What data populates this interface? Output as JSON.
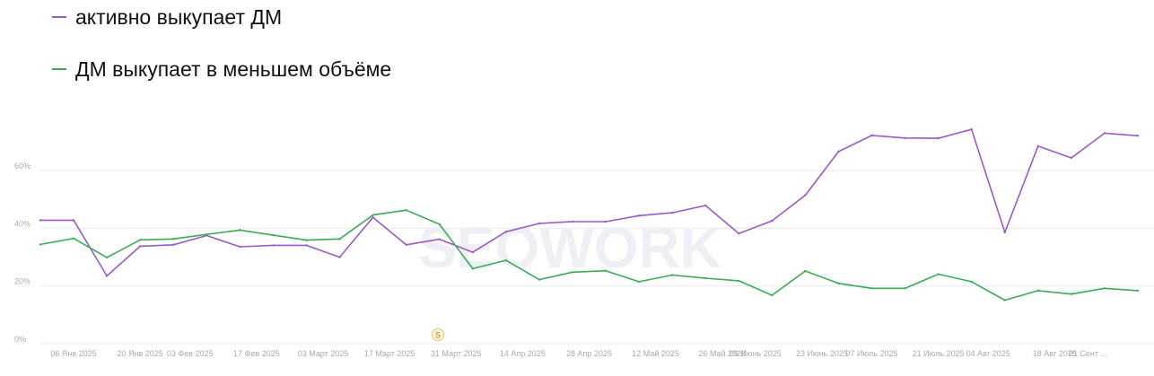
{
  "legend": {
    "items": [
      {
        "label": "активно выкупает ДМ",
        "color": "#9b59c8"
      },
      {
        "label": "ДМ выкупает в меньшем объёме",
        "color": "#3aac53"
      }
    ]
  },
  "watermark": "SEOWORK",
  "marker_badge": "S",
  "colors": {
    "grid": "#e9e9e9",
    "axis_text": "#aaaaaa",
    "purple": "#9b59c8",
    "green": "#3aac53"
  },
  "chart_data": {
    "type": "line",
    "ylim": [
      0,
      70
    ],
    "y_ticks": [
      "0%",
      "20%",
      "40%",
      "60%"
    ],
    "y_tick_values": [
      0,
      20,
      40,
      60
    ],
    "grid": true,
    "legend_position": "top-left",
    "x_tick_labels": [
      "06 Янв 2025",
      "20 Янв 2025",
      "03 Фев 2025",
      "17 Фев 2025",
      "03 Март 2025",
      "17 Март 2025",
      "31 Март 2025",
      "14 Апр 2025",
      "28 Апр 2025",
      "12 Май 2025",
      "26 Май 2025",
      "09 Июнь 2025",
      "23 Июнь 2025",
      "07 Июль 2025",
      "21 Июль 2025",
      "04 Авг 2025",
      "18 Авг 2025",
      "01 Сент ..."
    ],
    "x_tick_index": [
      1,
      3,
      4.5,
      6.5,
      8.5,
      10.5,
      12.5,
      14.5,
      16.5,
      18.5,
      20.5,
      21.5,
      23.5,
      25,
      27,
      28.5,
      30.5,
      31.5
    ],
    "series": [
      {
        "name": "активно выкупает ДМ",
        "color": "#9b59c8",
        "values": [
          42.8,
          42.8,
          23.5,
          33.8,
          34.3,
          37.5,
          33.6,
          34.1,
          34.1,
          30.0,
          43.8,
          34.3,
          36.2,
          31.7,
          38.8,
          41.7,
          42.3,
          42.3,
          44.4,
          45.4,
          47.9,
          38.2,
          42.6,
          51.5,
          66.6,
          72.2,
          71.3,
          71.2,
          74.3,
          38.6,
          68.5,
          64.4,
          73.0,
          72.1
        ]
      },
      {
        "name": "ДМ выкупает в меньшем объёме",
        "color": "#3aac53",
        "values": [
          34.4,
          36.5,
          29.9,
          36.0,
          36.3,
          37.9,
          39.4,
          37.6,
          35.9,
          36.3,
          44.6,
          46.3,
          41.4,
          26.0,
          28.9,
          22.2,
          24.8,
          25.3,
          21.5,
          23.8,
          22.7,
          21.8,
          16.8,
          25.2,
          20.9,
          19.2,
          19.2,
          24.1,
          21.5,
          15.1,
          18.4,
          17.2,
          19.2,
          18.4
        ]
      }
    ]
  }
}
